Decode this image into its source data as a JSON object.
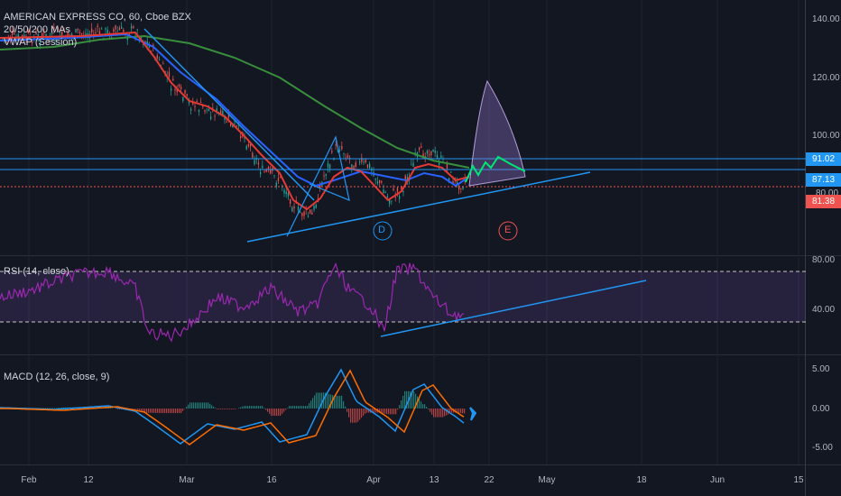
{
  "main": {
    "legend_title": "AMERICAN EXPRESS CO, 60, Cboe BZX",
    "legend_ma": "20/50/200 MAs",
    "legend_vwap": "VWAP (Session)",
    "y_ticks": [
      "140.00",
      "120.00",
      "100.00",
      "80.00"
    ],
    "price_tags": [
      {
        "label": "91.02",
        "color": "#2196f3"
      },
      {
        "label": "87.13",
        "color": "#2196f3"
      },
      {
        "label": "81.38",
        "color": "#ef5350"
      }
    ],
    "annotations": {
      "d_label": "D",
      "e_label": "E"
    }
  },
  "rsi": {
    "legend": "RSI (14, close)",
    "y_ticks": [
      "80.00",
      "40.00"
    ]
  },
  "macd": {
    "legend": "MACD (12, 26, close, 9)",
    "y_ticks": [
      "5.00",
      "0.00",
      "-5.00"
    ]
  },
  "time_axis": {
    "labels": [
      "Feb",
      "12",
      "Mar",
      "16",
      "Apr",
      "13",
      "22",
      "May",
      "18",
      "Jun",
      "15"
    ]
  },
  "colors": {
    "background": "#131722",
    "trendline": "#2196f3",
    "ma20": "#e53935",
    "ma50": "#2962ff",
    "ma200": "#388e3c",
    "rsi_line": "#9c27b0",
    "macd_line": "#2196f3",
    "signal_line": "#ff6d00",
    "projection": "#00e676"
  }
}
